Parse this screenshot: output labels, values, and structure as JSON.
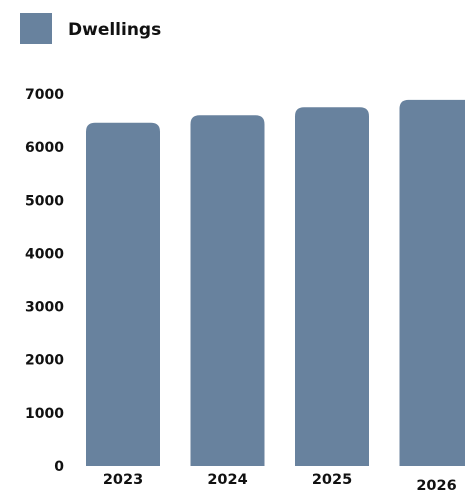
{
  "chart_data": {
    "type": "bar",
    "categories": [
      "2023",
      "2024",
      "2025",
      "2026"
    ],
    "series": [
      {
        "name": "Dwellings",
        "values": [
          6460,
          6600,
          6750,
          6890
        ],
        "color": "#68829e"
      }
    ],
    "ylim": [
      0,
      7000
    ],
    "yticks": [
      0,
      1000,
      2000,
      3000,
      4000,
      5000,
      6000,
      7000
    ],
    "title": "",
    "xlabel": "",
    "ylabel": "",
    "grid": false,
    "legend": "top-left"
  }
}
